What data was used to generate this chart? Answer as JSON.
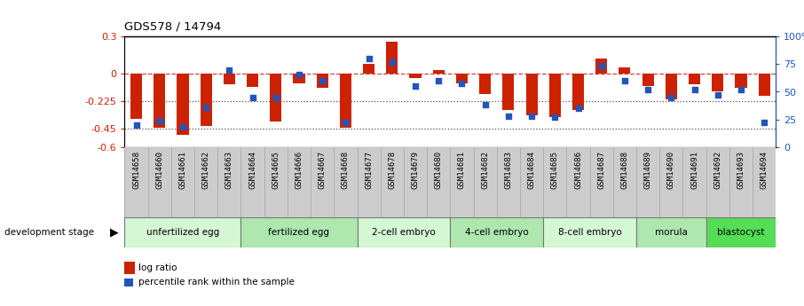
{
  "title": "GDS578 / 14794",
  "samples": [
    "GSM14658",
    "GSM14660",
    "GSM14661",
    "GSM14662",
    "GSM14663",
    "GSM14664",
    "GSM14665",
    "GSM14666",
    "GSM14667",
    "GSM14668",
    "GSM14677",
    "GSM14678",
    "GSM14679",
    "GSM14680",
    "GSM14681",
    "GSM14682",
    "GSM14683",
    "GSM14684",
    "GSM14685",
    "GSM14686",
    "GSM14687",
    "GSM14688",
    "GSM14689",
    "GSM14690",
    "GSM14691",
    "GSM14692",
    "GSM14693",
    "GSM14694"
  ],
  "log_ratio": [
    -0.37,
    -0.44,
    -0.5,
    -0.43,
    -0.09,
    -0.11,
    -0.39,
    -0.08,
    -0.12,
    -0.44,
    0.08,
    0.26,
    -0.04,
    0.03,
    -0.08,
    -0.17,
    -0.3,
    -0.34,
    -0.36,
    -0.3,
    0.12,
    0.05,
    -0.1,
    -0.21,
    -0.09,
    -0.15,
    -0.12,
    -0.18
  ],
  "percentile_rank": [
    20,
    24,
    18,
    36,
    70,
    45,
    45,
    66,
    60,
    22,
    80,
    77,
    55,
    60,
    58,
    38,
    28,
    28,
    27,
    35,
    74,
    60,
    52,
    45,
    52,
    47,
    52,
    22
  ],
  "stage_groups": [
    {
      "label": "unfertilized egg",
      "start": 0,
      "end": 4,
      "color": "#d4f7d4"
    },
    {
      "label": "fertilized egg",
      "start": 5,
      "end": 9,
      "color": "#aee8ae"
    },
    {
      "label": "2-cell embryo",
      "start": 10,
      "end": 13,
      "color": "#d4f7d4"
    },
    {
      "label": "4-cell embryo",
      "start": 14,
      "end": 17,
      "color": "#aee8ae"
    },
    {
      "label": "8-cell embryo",
      "start": 18,
      "end": 21,
      "color": "#d4f7d4"
    },
    {
      "label": "morula",
      "start": 22,
      "end": 24,
      "color": "#aee8ae"
    },
    {
      "label": "blastocyst",
      "start": 25,
      "end": 27,
      "color": "#55dd55"
    }
  ],
  "bar_color": "#cc2200",
  "dot_color": "#2255bb",
  "ylim_left": [
    -0.6,
    0.3
  ],
  "ylim_right": [
    0,
    100
  ],
  "yticks_left": [
    -0.6,
    -0.45,
    -0.225,
    0.0,
    0.3
  ],
  "ytick_labels_left": [
    "-0.6",
    "-0.45",
    "-0.225",
    "0",
    "0.3"
  ],
  "yticks_right": [
    0,
    25,
    50,
    75,
    100
  ],
  "ytick_labels_right": [
    "0",
    "25",
    "50",
    "75",
    "100%"
  ],
  "hline_positions": [
    0.0,
    -0.225,
    -0.45
  ],
  "hline_styles": [
    "--",
    ":",
    ":"
  ],
  "hline_colors": [
    "#cc4444",
    "#555555",
    "#555555"
  ],
  "xtick_bg_color": "#cccccc",
  "stage_border_color": "#777777",
  "bg_color": "#ffffff"
}
